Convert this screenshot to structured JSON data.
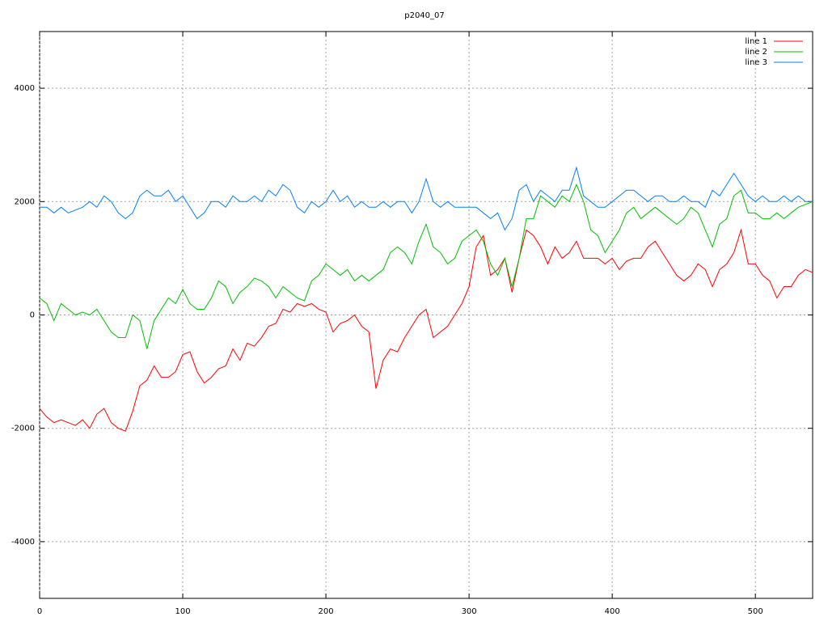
{
  "chart_data": {
    "type": "line",
    "title": "p2040_07",
    "x": [
      0,
      5,
      10,
      15,
      20,
      25,
      30,
      35,
      40,
      45,
      50,
      55,
      60,
      65,
      70,
      75,
      80,
      85,
      90,
      95,
      100,
      105,
      110,
      115,
      120,
      125,
      130,
      135,
      140,
      145,
      150,
      155,
      160,
      165,
      170,
      175,
      180,
      185,
      190,
      195,
      200,
      205,
      210,
      215,
      220,
      225,
      230,
      235,
      240,
      245,
      250,
      255,
      260,
      265,
      270,
      275,
      280,
      285,
      290,
      295,
      300,
      305,
      310,
      315,
      320,
      325,
      330,
      335,
      340,
      345,
      350,
      355,
      360,
      365,
      370,
      375,
      380,
      385,
      390,
      395,
      400,
      405,
      410,
      415,
      420,
      425,
      430,
      435,
      440,
      445,
      450,
      455,
      460,
      465,
      470,
      475,
      480,
      485,
      490,
      495,
      500,
      505,
      510,
      515,
      520,
      525,
      530,
      535,
      540
    ],
    "series": [
      {
        "name": "line 1",
        "color": "#ff0000",
        "values": [
          -1650,
          -1800,
          -1900,
          -1850,
          -1900,
          -1950,
          -1850,
          -2000,
          -1750,
          -1650,
          -1900,
          -2000,
          -2050,
          -1700,
          -1250,
          -1150,
          -900,
          -1100,
          -1100,
          -1000,
          -700,
          -650,
          -1000,
          -1200,
          -1100,
          -950,
          -900,
          -600,
          -800,
          -500,
          -550,
          -400,
          -200,
          -150,
          100,
          50,
          200,
          150,
          200,
          100,
          50,
          -300,
          -150,
          -100,
          0,
          -200,
          -300,
          -1300,
          -800,
          -600,
          -650,
          -400,
          -200,
          0,
          100,
          -400,
          -300,
          -200,
          0,
          200,
          500,
          1200,
          1400,
          700,
          800,
          1000,
          400,
          1000,
          1500,
          1400,
          1200,
          900,
          1200,
          1000,
          1100,
          1300,
          1000,
          1000,
          1000,
          900,
          1000,
          800,
          950,
          1000,
          1000,
          1200,
          1300,
          1100,
          900,
          700,
          600,
          700,
          900,
          800,
          500,
          800,
          900,
          1100,
          1500,
          900,
          900,
          700,
          600,
          300,
          500,
          500,
          700,
          800,
          750
        ]
      },
      {
        "name": "line 2",
        "color": "#00c000",
        "values": [
          300,
          200,
          -100,
          200,
          100,
          0,
          50,
          0,
          100,
          -100,
          -300,
          -400,
          -400,
          0,
          -100,
          -600,
          -100,
          100,
          300,
          200,
          450,
          200,
          100,
          100,
          300,
          600,
          500,
          200,
          400,
          500,
          650,
          600,
          500,
          300,
          500,
          400,
          300,
          250,
          600,
          700,
          900,
          800,
          700,
          800,
          600,
          700,
          600,
          700,
          800,
          1100,
          1200,
          1100,
          900,
          1300,
          1600,
          1200,
          1100,
          900,
          1000,
          1300,
          1400,
          1500,
          1300,
          900,
          700,
          1000,
          500,
          1000,
          1700,
          1700,
          2100,
          2000,
          1900,
          2100,
          2000,
          2300,
          2000,
          1500,
          1400,
          1100,
          1300,
          1500,
          1800,
          1900,
          1700,
          1800,
          1900,
          1800,
          1700,
          1600,
          1700,
          1900,
          1800,
          1500,
          1200,
          1600,
          1700,
          2100,
          2200,
          1800,
          1800,
          1700,
          1700,
          1800,
          1700,
          1800,
          1900,
          1950,
          2000
        ]
      },
      {
        "name": "line 3",
        "color": "#0080ff",
        "values": [
          1900,
          1900,
          1800,
          1900,
          1800,
          1850,
          1900,
          2000,
          1900,
          2100,
          2000,
          1800,
          1700,
          1800,
          2100,
          2200,
          2100,
          2100,
          2200,
          2000,
          2100,
          1900,
          1700,
          1800,
          2000,
          2000,
          1900,
          2100,
          2000,
          2000,
          2100,
          2000,
          2200,
          2100,
          2300,
          2200,
          1900,
          1800,
          2000,
          1900,
          2000,
          2200,
          2000,
          2100,
          1900,
          2000,
          1900,
          1900,
          2000,
          1900,
          2000,
          2000,
          1800,
          2000,
          2400,
          2000,
          1900,
          2000,
          1900,
          1900,
          1900,
          1900,
          1800,
          1700,
          1800,
          1500,
          1700,
          2200,
          2300,
          2000,
          2200,
          2100,
          2000,
          2200,
          2200,
          2600,
          2100,
          2000,
          1900,
          1900,
          2000,
          2100,
          2200,
          2200,
          2100,
          2000,
          2100,
          2100,
          2000,
          2000,
          2100,
          2000,
          2000,
          1900,
          2200,
          2100,
          2300,
          2500,
          2300,
          2100,
          2000,
          2100,
          2000,
          2000,
          2100,
          2000,
          2100,
          2000,
          2000
        ]
      }
    ],
    "xlim": [
      0,
      540
    ],
    "ylim": [
      -5000,
      5000
    ],
    "xticks": [
      0,
      100,
      200,
      300,
      400,
      500
    ],
    "yticks": [
      -4000,
      -2000,
      0,
      2000,
      4000
    ],
    "grid": true,
    "legend": "top-right"
  }
}
